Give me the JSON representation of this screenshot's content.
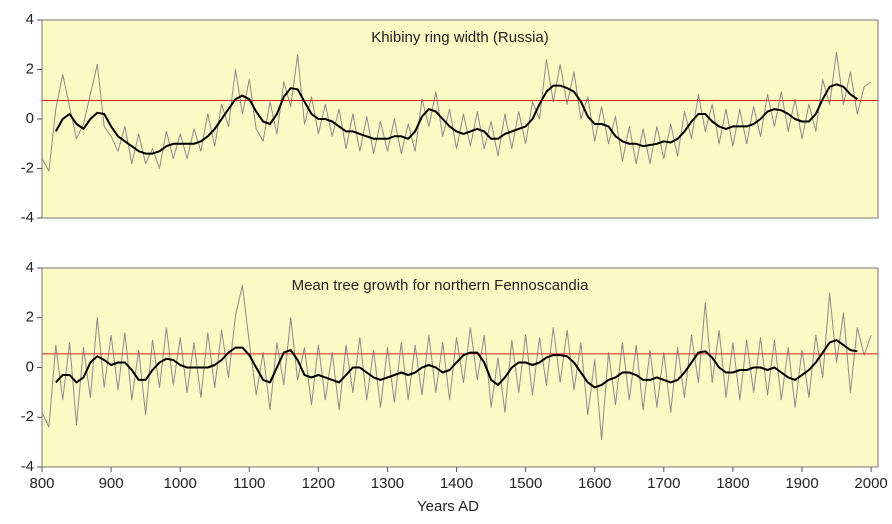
{
  "chart_data": [
    {
      "type": "line",
      "title": "Khibiny ring width (Russia)",
      "x": [
        800,
        810,
        820,
        830,
        840,
        850,
        860,
        870,
        880,
        890,
        900,
        910,
        920,
        930,
        940,
        950,
        960,
        970,
        980,
        990,
        1000,
        1010,
        1020,
        1030,
        1040,
        1050,
        1060,
        1070,
        1080,
        1090,
        1100,
        1110,
        1120,
        1130,
        1140,
        1150,
        1160,
        1170,
        1180,
        1190,
        1200,
        1210,
        1220,
        1230,
        1240,
        1250,
        1260,
        1270,
        1280,
        1290,
        1300,
        1310,
        1320,
        1330,
        1340,
        1350,
        1360,
        1370,
        1380,
        1390,
        1400,
        1410,
        1420,
        1430,
        1440,
        1450,
        1460,
        1470,
        1480,
        1490,
        1500,
        1510,
        1520,
        1530,
        1540,
        1550,
        1560,
        1570,
        1580,
        1590,
        1600,
        1610,
        1620,
        1630,
        1640,
        1650,
        1660,
        1670,
        1680,
        1690,
        1700,
        1710,
        1720,
        1730,
        1740,
        1750,
        1760,
        1770,
        1780,
        1790,
        1800,
        1810,
        1820,
        1830,
        1840,
        1850,
        1860,
        1870,
        1880,
        1890,
        1900,
        1910,
        1920,
        1930,
        1940,
        1950,
        1960,
        1970,
        1980,
        1990,
        2000
      ],
      "series": [
        {
          "color": "#8c8c8c",
          "values": [
            -1.6,
            -2.1,
            0.4,
            1.8,
            0.5,
            -0.8,
            -0.2,
            1.0,
            2.2,
            -0.3,
            -0.7,
            -1.3,
            -0.3,
            -1.8,
            -0.6,
            -1.8,
            -1.2,
            -2.0,
            -0.5,
            -1.6,
            -0.6,
            -1.6,
            -0.4,
            -1.3,
            0.2,
            -1.1,
            0.6,
            -0.3,
            2.0,
            0.2,
            1.6,
            -0.4,
            -0.9,
            0.7,
            -0.6,
            1.5,
            0.5,
            2.6,
            -0.2,
            0.9,
            -0.6,
            0.6,
            -0.7,
            0.4,
            -1.2,
            0.2,
            -1.3,
            0.1,
            -1.4,
            -0.1,
            -1.3,
            0.0,
            -1.4,
            -0.2,
            -1.3,
            0.8,
            -0.3,
            1.1,
            -0.7,
            0.4,
            -1.2,
            0.2,
            -1.1,
            0.3,
            -1.2,
            -0.1,
            -1.5,
            0.2,
            -1.2,
            0.3,
            -1.0,
            0.7,
            0.0,
            2.4,
            0.7,
            2.2,
            0.6,
            1.9,
            0.0,
            0.9,
            -0.9,
            0.5,
            -1.0,
            0.1,
            -1.7,
            -0.3,
            -1.8,
            -0.4,
            -1.8,
            -0.3,
            -1.6,
            -0.2,
            -1.5,
            0.3,
            -0.8,
            1.0,
            -0.5,
            0.6,
            -1.0,
            0.4,
            -1.1,
            0.4,
            -1.0,
            0.5,
            -0.7,
            1.0,
            -0.3,
            1.1,
            -0.5,
            0.8,
            -0.8,
            0.6,
            -0.5,
            1.6,
            0.6,
            2.7,
            0.6,
            1.9,
            0.2,
            1.3,
            1.5
          ]
        },
        {
          "color": "#000000",
          "values": [
            null,
            null,
            -0.5,
            0,
            0.2,
            -0.2,
            -0.4,
            0,
            0.25,
            0.2,
            -0.3,
            -0.7,
            -0.9,
            -1.1,
            -1.3,
            -1.4,
            -1.4,
            -1.3,
            -1.1,
            -1.0,
            -1.0,
            -1.0,
            -1.0,
            -0.9,
            -0.7,
            -0.4,
            0,
            0.4,
            0.8,
            0.95,
            0.8,
            0.3,
            -0.1,
            -0.2,
            0.2,
            0.9,
            1.25,
            1.2,
            0.7,
            0.2,
            0.0,
            0.0,
            -0.1,
            -0.3,
            -0.5,
            -0.5,
            -0.6,
            -0.7,
            -0.8,
            -0.8,
            -0.8,
            -0.7,
            -0.7,
            -0.8,
            -0.5,
            0.1,
            0.4,
            0.3,
            0.0,
            -0.3,
            -0.5,
            -0.6,
            -0.5,
            -0.4,
            -0.5,
            -0.8,
            -0.8,
            -0.6,
            -0.5,
            -0.4,
            -0.3,
            0.0,
            0.6,
            1.1,
            1.35,
            1.35,
            1.25,
            1.1,
            0.7,
            0.1,
            -0.2,
            -0.2,
            -0.3,
            -0.7,
            -0.9,
            -1.0,
            -1.0,
            -1.1,
            -1.05,
            -1.0,
            -0.9,
            -0.95,
            -0.8,
            -0.5,
            -0.1,
            0.2,
            0.2,
            -0.1,
            -0.3,
            -0.4,
            -0.3,
            -0.3,
            -0.3,
            -0.2,
            0.0,
            0.3,
            0.4,
            0.35,
            0.2,
            0.0,
            -0.1,
            -0.1,
            0.2,
            0.8,
            1.3,
            1.4,
            1.3,
            1.0,
            0.8,
            null,
            null
          ]
        }
      ],
      "reference_line": {
        "value": 0.75,
        "color": "#e02020"
      },
      "xlim": [
        800,
        2010
      ],
      "ylim": [
        -4,
        4
      ],
      "yticks": [
        -4,
        -2,
        0,
        2,
        4
      ],
      "background": "#fbf9c4"
    },
    {
      "type": "line",
      "title": "Mean tree growth for northern Fennoscandia",
      "xlabel": "Years AD",
      "x": [
        800,
        810,
        820,
        830,
        840,
        850,
        860,
        870,
        880,
        890,
        900,
        910,
        920,
        930,
        940,
        950,
        960,
        970,
        980,
        990,
        1000,
        1010,
        1020,
        1030,
        1040,
        1050,
        1060,
        1070,
        1080,
        1090,
        1100,
        1110,
        1120,
        1130,
        1140,
        1150,
        1160,
        1170,
        1180,
        1190,
        1200,
        1210,
        1220,
        1230,
        1240,
        1250,
        1260,
        1270,
        1280,
        1290,
        1300,
        1310,
        1320,
        1330,
        1340,
        1350,
        1360,
        1370,
        1380,
        1390,
        1400,
        1410,
        1420,
        1430,
        1440,
        1450,
        1460,
        1470,
        1480,
        1490,
        1500,
        1510,
        1520,
        1530,
        1540,
        1550,
        1560,
        1570,
        1580,
        1590,
        1600,
        1610,
        1620,
        1630,
        1640,
        1650,
        1660,
        1670,
        1680,
        1690,
        1700,
        1710,
        1720,
        1730,
        1740,
        1750,
        1760,
        1770,
        1780,
        1790,
        1800,
        1810,
        1820,
        1830,
        1840,
        1850,
        1860,
        1870,
        1880,
        1890,
        1900,
        1910,
        1920,
        1930,
        1940,
        1950,
        1960,
        1970,
        1980,
        1990,
        2000
      ],
      "series": [
        {
          "color": "#8c8c8c",
          "values": [
            -1.8,
            -2.4,
            0.9,
            -1.3,
            1.0,
            -2.3,
            0.8,
            -1.2,
            2.0,
            -0.8,
            1.3,
            -0.9,
            1.4,
            -1.3,
            0.7,
            -1.9,
            1.1,
            -0.8,
            1.6,
            -0.7,
            1.2,
            -1.0,
            1.0,
            -1.2,
            1.4,
            -0.8,
            1.5,
            -0.4,
            2.1,
            3.3,
            1.0,
            -1.1,
            0.6,
            -1.7,
            1.0,
            -0.7,
            2.0,
            -0.5,
            0.8,
            -1.5,
            0.9,
            -1.3,
            0.6,
            -1.7,
            0.9,
            -1.0,
            1.2,
            -1.3,
            0.7,
            -1.6,
            0.8,
            -1.4,
            1.0,
            -1.3,
            0.9,
            -1.1,
            1.3,
            -1.0,
            1.0,
            -1.3,
            1.2,
            -0.6,
            1.6,
            -0.5,
            1.3,
            -1.6,
            0.4,
            -1.8,
            1.1,
            -1.0,
            1.3,
            -1.1,
            1.2,
            -0.7,
            1.6,
            -0.6,
            1.5,
            -0.9,
            1.0,
            -1.9,
            0.3,
            -2.9,
            0.6,
            -1.5,
            1.0,
            -1.3,
            0.9,
            -1.7,
            0.7,
            -1.6,
            0.6,
            -1.8,
            0.8,
            -1.2,
            1.3,
            -0.6,
            2.6,
            -0.6,
            1.5,
            -1.2,
            1.0,
            -1.3,
            1.1,
            -1.0,
            1.2,
            -1.1,
            1.1,
            -1.3,
            0.8,
            -1.6,
            0.7,
            -1.2,
            1.3,
            -0.4,
            3.0,
            0.2,
            2.2,
            -1.0,
            1.6,
            0.5,
            1.3
          ]
        },
        {
          "color": "#000000",
          "values": [
            null,
            null,
            -0.6,
            -0.3,
            -0.3,
            -0.6,
            -0.4,
            0.2,
            0.45,
            0.3,
            0.1,
            0.2,
            0.2,
            -0.1,
            -0.5,
            -0.5,
            -0.1,
            0.2,
            0.35,
            0.3,
            0.1,
            0.0,
            0.0,
            0.0,
            0.0,
            0.1,
            0.3,
            0.6,
            0.8,
            0.8,
            0.5,
            0.0,
            -0.5,
            -0.6,
            0.0,
            0.6,
            0.7,
            0.3,
            -0.3,
            -0.4,
            -0.3,
            -0.4,
            -0.5,
            -0.6,
            -0.3,
            0.0,
            0.0,
            -0.2,
            -0.4,
            -0.5,
            -0.4,
            -0.3,
            -0.2,
            -0.3,
            -0.2,
            0.0,
            0.1,
            0.0,
            -0.2,
            -0.1,
            0.2,
            0.5,
            0.6,
            0.6,
            0.2,
            -0.5,
            -0.7,
            -0.4,
            0.0,
            0.2,
            0.2,
            0.1,
            0.2,
            0.4,
            0.5,
            0.5,
            0.45,
            0.2,
            -0.2,
            -0.6,
            -0.8,
            -0.7,
            -0.5,
            -0.4,
            -0.2,
            -0.2,
            -0.3,
            -0.5,
            -0.5,
            -0.4,
            -0.5,
            -0.6,
            -0.5,
            -0.2,
            0.2,
            0.6,
            0.65,
            0.4,
            0.0,
            -0.2,
            -0.2,
            -0.1,
            -0.1,
            0.0,
            0.0,
            -0.1,
            0.0,
            -0.2,
            -0.4,
            -0.5,
            -0.3,
            -0.1,
            0.2,
            0.6,
            1.0,
            1.1,
            0.9,
            0.7,
            0.65,
            null,
            null
          ]
        }
      ],
      "reference_line": {
        "value": 0.55,
        "color": "#e02020"
      },
      "xlim": [
        800,
        2010
      ],
      "xticks": [
        800,
        900,
        1000,
        1100,
        1200,
        1300,
        1400,
        1500,
        1600,
        1700,
        1800,
        1900,
        2000
      ],
      "ylim": [
        -4,
        4
      ],
      "yticks": [
        -4,
        -2,
        0,
        2,
        4
      ],
      "background": "#fbf9c4"
    }
  ]
}
